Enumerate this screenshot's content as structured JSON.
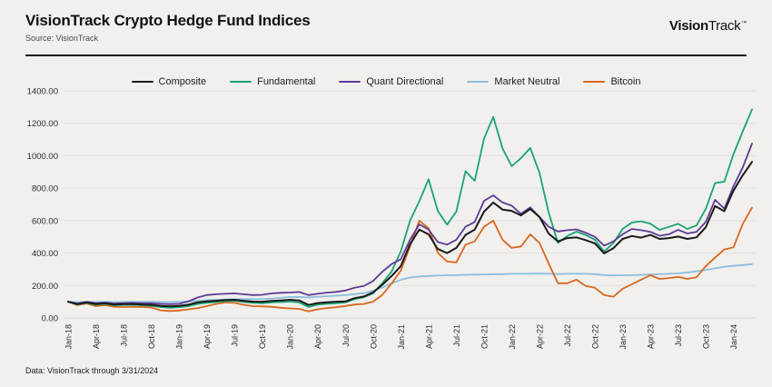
{
  "header": {
    "title": "VisionTrack Crypto Hedge Fund Indices",
    "subtitle": "Source: VisionTrack",
    "logo_bold": "Vision",
    "logo_regular": "Track",
    "logo_tm": "™"
  },
  "footer": {
    "note": "Data: VisionTrack through 3/31/2024"
  },
  "chart_data": {
    "type": "line",
    "title": "VisionTrack Crypto Hedge Fund Indices",
    "x_frequency": "monthly",
    "x_start": "Jan-18",
    "x_end": "Mar-24",
    "x_tick_labels": [
      "Jan-18",
      "Apr-18",
      "Jul-18",
      "Oct-18",
      "Jan-19",
      "Apr-19",
      "Jul-19",
      "Oct-19",
      "Jan-20",
      "Apr-20",
      "Jul-20",
      "Oct-20",
      "Jan-21",
      "Apr-21",
      "Jul-21",
      "Oct-21",
      "Jan-22",
      "Apr-22",
      "Jul-22",
      "Oct-22",
      "Jan-23",
      "Apr-23",
      "Jul-23",
      "Oct-23",
      "Jan-24"
    ],
    "y_tick_labels": [
      "0.00",
      "200.00",
      "400.00",
      "600.00",
      "800.00",
      "1000.00",
      "1200.00",
      "1400.00"
    ],
    "y_ticks": [
      0,
      200,
      400,
      600,
      800,
      1000,
      1200,
      1400
    ],
    "ylim": [
      0,
      1400
    ],
    "grid": "horizontal",
    "legend_position": "top-center",
    "background_color": "#f1f0ed",
    "gridline_color": "#e2e1de",
    "series": [
      {
        "name": "Composite",
        "color": "#1a1a1a",
        "values": [
          100,
          85,
          96,
          86,
          90,
          83,
          85,
          86,
          83,
          81,
          74,
          71,
          74,
          82,
          96,
          102,
          106,
          111,
          112,
          106,
          101,
          100,
          105,
          108,
          112,
          108,
          80,
          92,
          97,
          100,
          102,
          122,
          132,
          158,
          205,
          258,
          320,
          455,
          545,
          515,
          425,
          400,
          432,
          512,
          545,
          655,
          712,
          668,
          660,
          632,
          672,
          622,
          520,
          472,
          492,
          497,
          480,
          460,
          398,
          430,
          487,
          505,
          495,
          512,
          487,
          492,
          502,
          487,
          497,
          560,
          690,
          658,
          785,
          880,
          962
        ]
      },
      {
        "name": "Fundamental",
        "color": "#18a474",
        "values": [
          100,
          83,
          93,
          81,
          87,
          78,
          80,
          81,
          78,
          75,
          67,
          63,
          66,
          73,
          86,
          93,
          98,
          104,
          106,
          98,
          93,
          91,
          96,
          98,
          101,
          96,
          68,
          82,
          87,
          90,
          96,
          116,
          127,
          152,
          215,
          285,
          410,
          600,
          720,
          855,
          660,
          575,
          655,
          905,
          845,
          1105,
          1240,
          1045,
          935,
          985,
          1048,
          895,
          650,
          462,
          505,
          532,
          512,
          482,
          410,
          462,
          549,
          588,
          596,
          581,
          543,
          561,
          581,
          549,
          570,
          672,
          832,
          840,
          1010,
          1150,
          1285
        ]
      },
      {
        "name": "Quant Directional",
        "color": "#5f3a96",
        "values": [
          100,
          89,
          99,
          91,
          95,
          89,
          91,
          93,
          91,
          91,
          87,
          85,
          87,
          102,
          126,
          141,
          146,
          149,
          151,
          146,
          141,
          143,
          151,
          155,
          157,
          160,
          141,
          149,
          156,
          161,
          169,
          186,
          197,
          228,
          285,
          332,
          362,
          482,
          577,
          545,
          468,
          452,
          482,
          562,
          592,
          722,
          756,
          712,
          692,
          642,
          682,
          622,
          562,
          533,
          541,
          546,
          526,
          500,
          446,
          472,
          516,
          549,
          541,
          531,
          506,
          516,
          543,
          521,
          531,
          592,
          728,
          674,
          812,
          928,
          1075
        ]
      },
      {
        "name": "Market Neutral",
        "color": "#8cbede",
        "values": [
          100,
          97,
          99,
          98,
          99,
          98,
          99,
          99,
          99,
          100,
          98,
          98,
          99,
          102,
          106,
          110,
          112,
          114,
          115,
          116,
          116,
          117,
          120,
          124,
          129,
          130,
          126,
          131,
          134,
          137,
          141,
          147,
          153,
          168,
          188,
          212,
          236,
          249,
          256,
          259,
          261,
          263,
          264,
          266,
          267,
          268,
          270,
          270,
          272,
          272,
          273,
          274,
          272,
          271,
          272,
          273,
          272,
          270,
          264,
          262,
          263,
          264,
          266,
          268,
          270,
          272,
          275,
          280,
          288,
          296,
          306,
          316,
          321,
          326,
          332
        ]
      },
      {
        "name": "Bitcoin",
        "color": "#d9671f",
        "values": [
          100,
          79,
          89,
          73,
          79,
          69,
          67,
          69,
          67,
          65,
          47,
          43,
          46,
          53,
          61,
          73,
          86,
          96,
          93,
          81,
          73,
          71,
          69,
          63,
          59,
          56,
          41,
          53,
          61,
          66,
          74,
          83,
          86,
          101,
          142,
          212,
          292,
          442,
          600,
          552,
          402,
          348,
          342,
          452,
          472,
          562,
          600,
          482,
          432,
          441,
          516,
          462,
          336,
          214,
          214,
          236,
          197,
          186,
          141,
          131,
          180,
          208,
          236,
          263,
          241,
          246,
          253,
          241,
          251,
          320,
          372,
          422,
          435,
          580,
          680
        ]
      }
    ]
  }
}
